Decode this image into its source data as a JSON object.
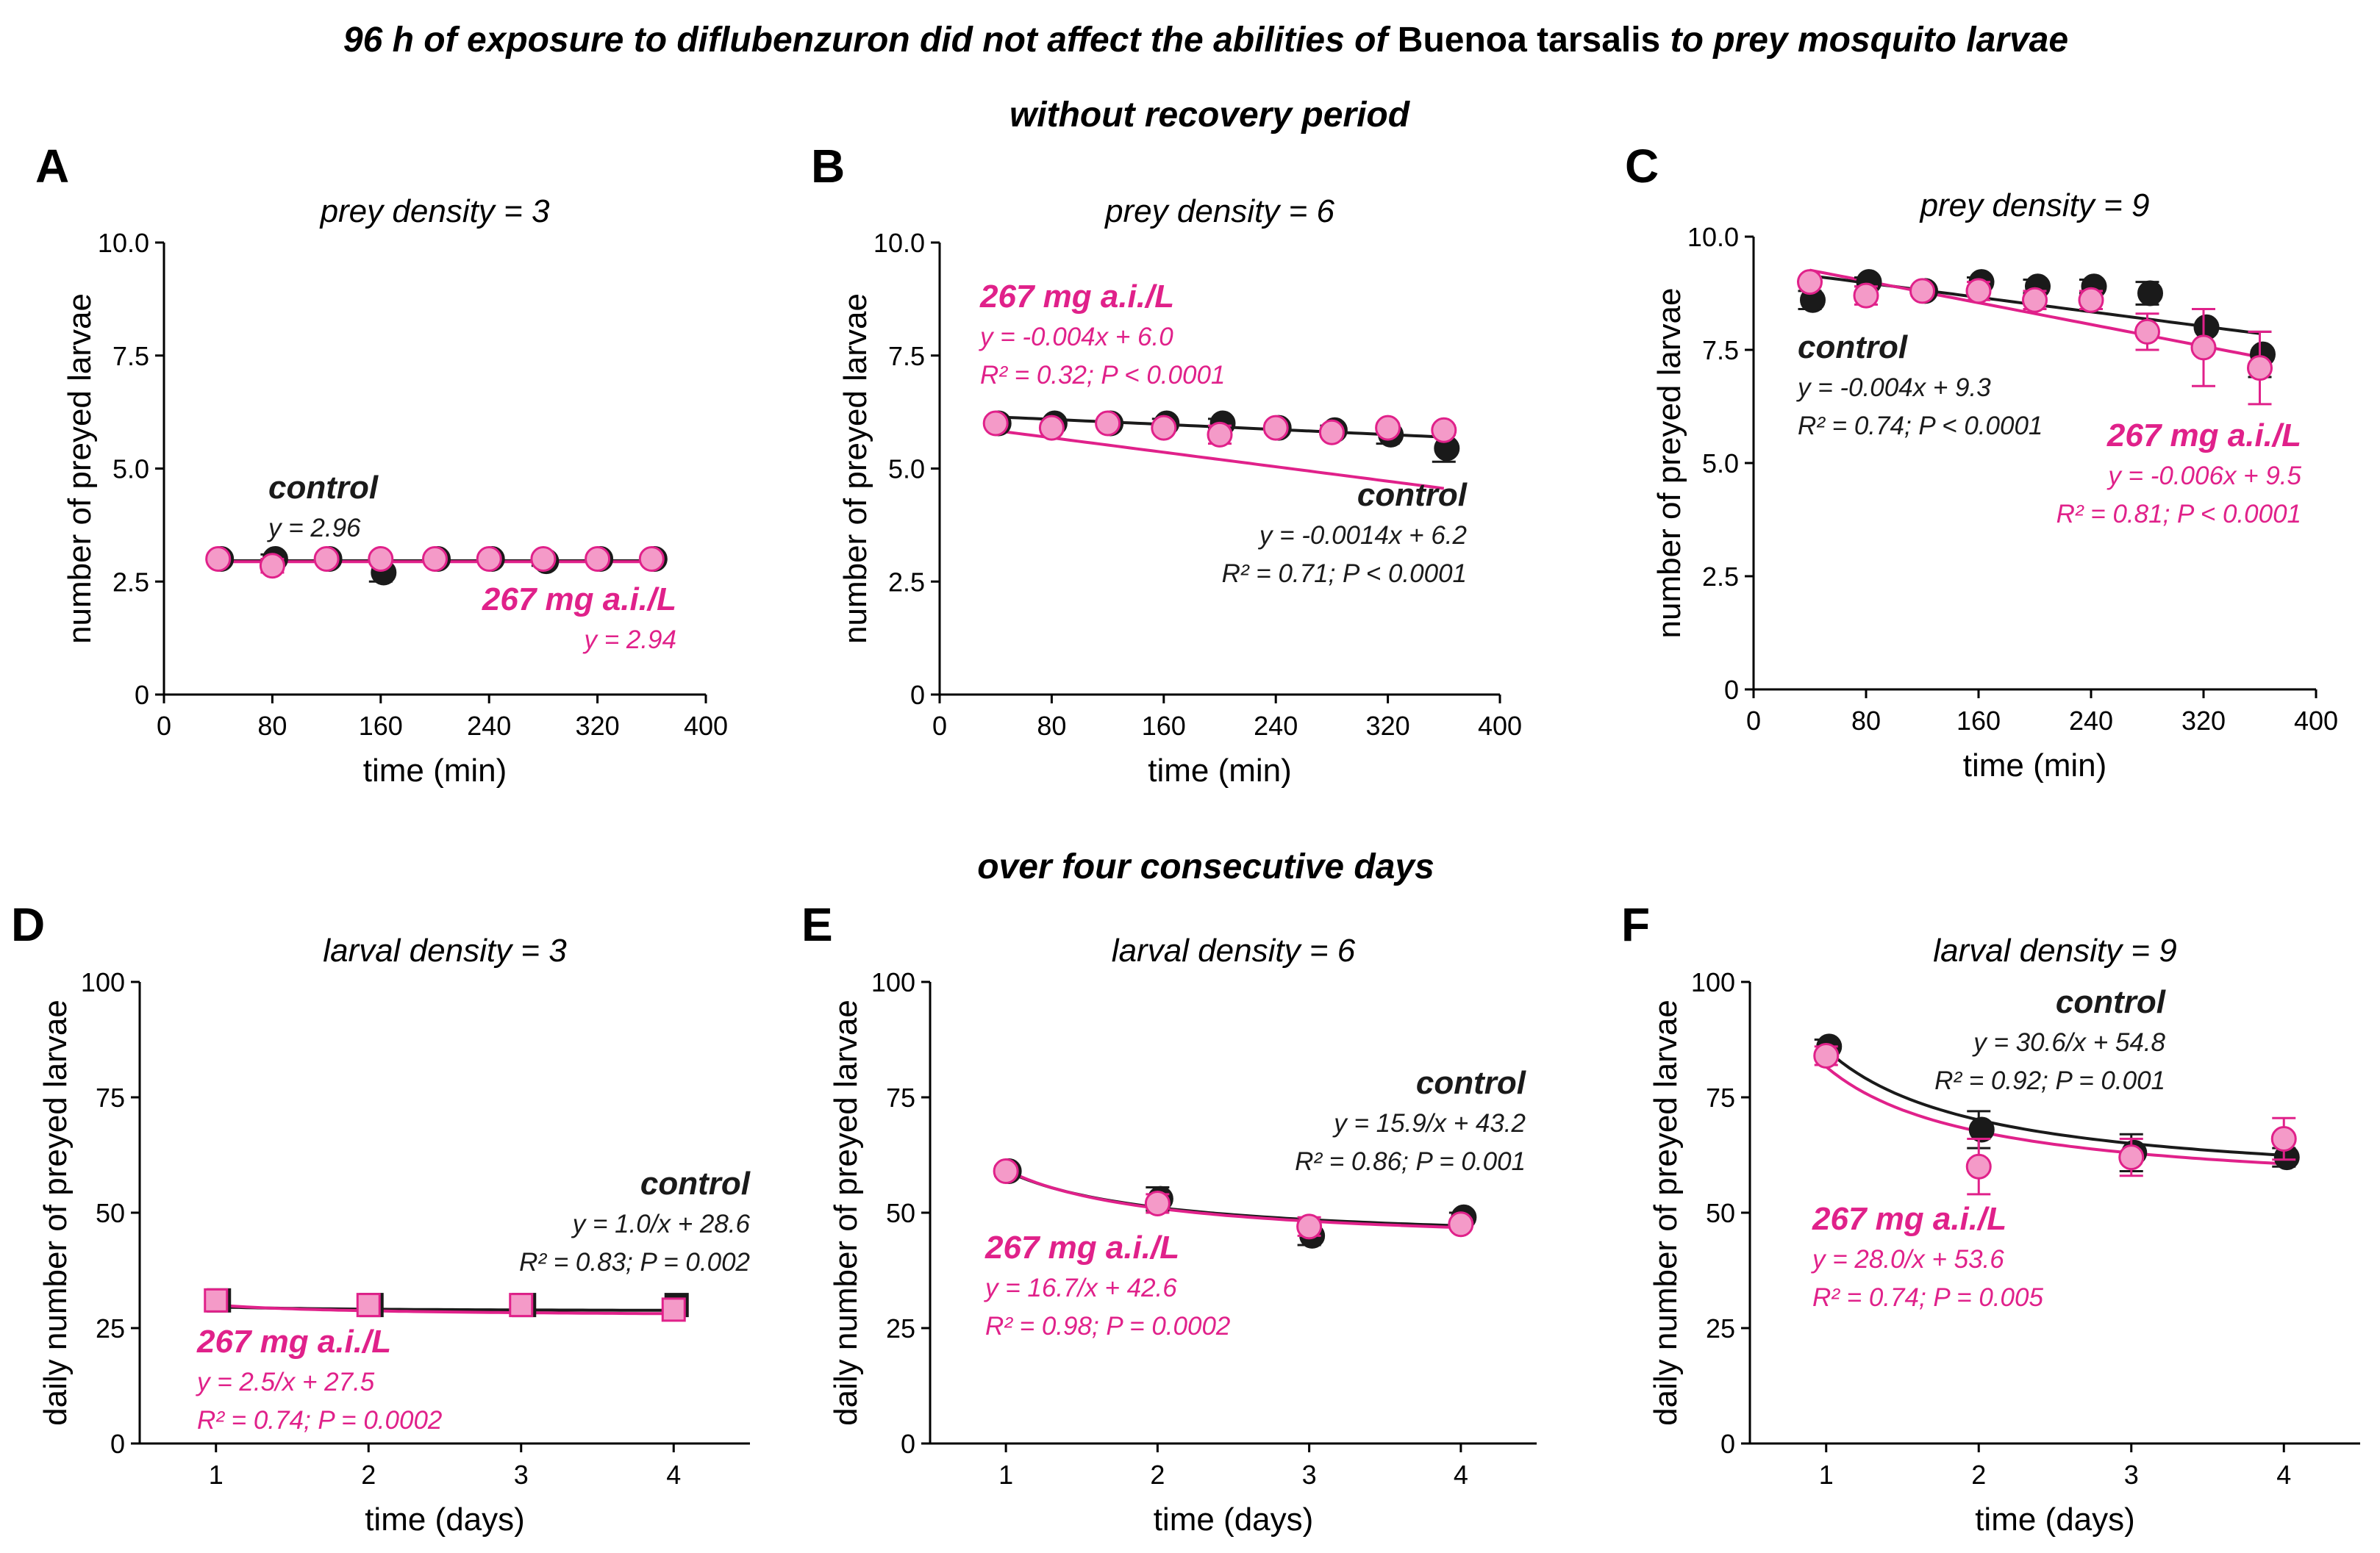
{
  "figure": {
    "title_part1": "96 h of exposure to diflubenzuron did not affect the abilities of ",
    "title_species": "Buenoa tarsalis",
    "title_part2": " to prey mosquito larvae",
    "section_top": "without recovery period",
    "section_bottom": "over four consecutive days"
  },
  "colors": {
    "control": "#1a1a1a",
    "treated_line": "#e0218a",
    "treated_fill": "#f49ac8",
    "axis": "#000000"
  },
  "chart_data": [
    {
      "panel": "A",
      "type": "scatter",
      "title": "prey density = 3",
      "xlabel": "time (min)",
      "ylabel": "number of preyed larvae",
      "xlim": [
        0,
        400
      ],
      "ylim": [
        0,
        10
      ],
      "xticks": [
        0,
        80,
        160,
        240,
        320,
        400
      ],
      "yticks": [
        0,
        2.5,
        5.0,
        7.5,
        10.0
      ],
      "ytick_labels": [
        "0",
        "2.5",
        "5.0",
        "7.5",
        "10.0"
      ],
      "fit_type": "const",
      "marker": "circle",
      "series": [
        {
          "name": "control",
          "x": [
            40,
            80,
            120,
            160,
            200,
            240,
            280,
            320,
            360
          ],
          "y": [
            3.0,
            3.0,
            3.0,
            2.7,
            3.0,
            3.0,
            2.95,
            3.0,
            3.0
          ],
          "err": [
            0,
            0.1,
            0,
            0.2,
            0,
            0,
            0.1,
            0,
            0
          ],
          "fit": {
            "c": 2.96
          }
        },
        {
          "name": "267 mg a.i./L",
          "x": [
            40,
            80,
            120,
            160,
            200,
            240,
            280,
            320,
            360
          ],
          "y": [
            3.0,
            2.85,
            3.0,
            3.0,
            3.0,
            3.0,
            3.0,
            3.0,
            3.0
          ],
          "err": [
            0,
            0.15,
            0,
            0,
            0,
            0,
            0,
            0,
            0
          ],
          "fit": {
            "c": 2.94
          }
        }
      ],
      "annotations": {
        "control": {
          "label": "control",
          "lines": [
            "y = 2.96"
          ]
        },
        "treated": {
          "label": "267 mg a.i./L",
          "lines": [
            "y = 2.94"
          ]
        }
      }
    },
    {
      "panel": "B",
      "type": "scatter",
      "title": "prey density = 6",
      "xlabel": "time (min)",
      "ylabel": "number of preyed larvae",
      "xlim": [
        0,
        400
      ],
      "ylim": [
        0,
        10
      ],
      "xticks": [
        0,
        80,
        160,
        240,
        320,
        400
      ],
      "yticks": [
        0,
        2.5,
        5.0,
        7.5,
        10.0
      ],
      "ytick_labels": [
        "0",
        "2.5",
        "5.0",
        "7.5",
        "10.0"
      ],
      "fit_type": "linear",
      "marker": "circle",
      "series": [
        {
          "name": "control",
          "x": [
            40,
            80,
            120,
            160,
            200,
            240,
            280,
            320,
            360
          ],
          "y": [
            6.0,
            6.0,
            6.0,
            6.0,
            6.0,
            5.9,
            5.85,
            5.75,
            5.45
          ],
          "err": [
            0,
            0.1,
            0,
            0.1,
            0.1,
            0.1,
            0.1,
            0.2,
            0.3
          ],
          "fit": {
            "m": -0.0014,
            "b": 6.2
          }
        },
        {
          "name": "267 mg a.i./L",
          "x": [
            40,
            80,
            120,
            160,
            200,
            240,
            280,
            320,
            360
          ],
          "y": [
            6.0,
            5.9,
            6.0,
            5.9,
            5.75,
            5.9,
            5.8,
            5.9,
            5.85
          ],
          "err": [
            0,
            0.1,
            0,
            0.1,
            0.2,
            0.1,
            0.1,
            0.1,
            0.1
          ],
          "fit": {
            "m": -0.004,
            "b": 6.0
          }
        }
      ],
      "annotations": {
        "control": {
          "label": "control",
          "lines": [
            "y = -0.0014x + 6.2",
            "R² = 0.71; P < 0.0001"
          ]
        },
        "treated": {
          "label": "267 mg a.i./L",
          "lines": [
            "y = -0.004x + 6.0",
            "R² = 0.32; P < 0.0001"
          ]
        }
      }
    },
    {
      "panel": "C",
      "type": "scatter",
      "title": "prey density = 9",
      "xlabel": "time (min)",
      "ylabel": "number of preyed larvae",
      "xlim": [
        0,
        400
      ],
      "ylim": [
        0,
        10
      ],
      "xticks": [
        0,
        80,
        160,
        240,
        320,
        400
      ],
      "yticks": [
        0,
        2.5,
        5.0,
        7.5,
        10.0
      ],
      "ytick_labels": [
        "0",
        "2.5",
        "5.0",
        "7.5",
        "10.0"
      ],
      "fit_type": "linear",
      "marker": "circle",
      "series": [
        {
          "name": "control",
          "x": [
            40,
            80,
            120,
            160,
            200,
            240,
            280,
            320,
            360
          ],
          "y": [
            8.6,
            9.0,
            8.8,
            9.0,
            8.9,
            8.9,
            8.75,
            8.0,
            7.4
          ],
          "err": [
            0.2,
            0.1,
            0.1,
            0.1,
            0.15,
            0.15,
            0.25,
            0.4,
            0.5
          ],
          "fit": {
            "m": -0.004,
            "b": 9.3
          }
        },
        {
          "name": "267 mg a.i./L",
          "x": [
            40,
            80,
            120,
            160,
            200,
            240,
            280,
            320,
            360
          ],
          "y": [
            9.0,
            8.7,
            8.8,
            8.8,
            8.6,
            8.6,
            7.9,
            7.55,
            7.1
          ],
          "err": [
            0,
            0.2,
            0.1,
            0.2,
            0.2,
            0.2,
            0.4,
            0.85,
            0.8
          ],
          "fit": {
            "m": -0.006,
            "b": 9.5
          }
        }
      ],
      "annotations": {
        "control": {
          "label": "control",
          "lines": [
            "y = -0.004x + 9.3",
            "R² = 0.74; P < 0.0001"
          ]
        },
        "treated": {
          "label": "267 mg a.i./L",
          "lines": [
            "y = -0.006x + 9.5",
            "R² = 0.81; P < 0.0001"
          ]
        }
      }
    },
    {
      "panel": "D",
      "type": "scatter",
      "title": "larval density = 3",
      "xlabel": "time (days)",
      "ylabel": "daily number of preyed larvae",
      "xlim": [
        0.5,
        4.5
      ],
      "ylim": [
        0,
        100
      ],
      "xticks": [
        1,
        2,
        3,
        4
      ],
      "yticks": [
        0,
        25,
        50,
        75,
        100
      ],
      "ytick_labels": [
        "0",
        "25",
        "50",
        "75",
        "100"
      ],
      "fit_type": "hyper",
      "marker": "square",
      "series": [
        {
          "name": "control",
          "x": [
            1,
            2,
            3,
            4
          ],
          "y": [
            31,
            30,
            30,
            30
          ],
          "err": [
            1,
            1,
            1,
            1
          ],
          "fit": {
            "a": 1.0,
            "b": 28.6
          }
        },
        {
          "name": "267 mg a.i./L",
          "x": [
            1,
            2,
            3,
            4
          ],
          "y": [
            31,
            30,
            30,
            29
          ],
          "err": [
            1,
            1,
            1,
            1
          ],
          "fit": {
            "a": 2.5,
            "b": 27.5
          }
        }
      ],
      "annotations": {
        "control": {
          "label": "control",
          "lines": [
            "y = 1.0/x + 28.6",
            "R² = 0.83; P = 0.002"
          ]
        },
        "treated": {
          "label": "267 mg a.i./L",
          "lines": [
            "y = 2.5/x + 27.5",
            "R² = 0.74; P = 0.0002"
          ]
        }
      }
    },
    {
      "panel": "E",
      "type": "scatter",
      "title": "larval density = 6",
      "xlabel": "time (days)",
      "ylabel": "daily number of preyed larvae",
      "xlim": [
        0.5,
        4.5
      ],
      "ylim": [
        0,
        100
      ],
      "xticks": [
        1,
        2,
        3,
        4
      ],
      "yticks": [
        0,
        25,
        50,
        75,
        100
      ],
      "ytick_labels": [
        "0",
        "25",
        "50",
        "75",
        "100"
      ],
      "fit_type": "hyper",
      "marker": "circle",
      "series": [
        {
          "name": "control",
          "x": [
            1,
            2,
            3,
            4
          ],
          "y": [
            59,
            53,
            45,
            49
          ],
          "err": [
            1,
            2.5,
            2,
            1
          ],
          "fit": {
            "a": 15.9,
            "b": 43.2
          }
        },
        {
          "name": "267 mg a.i./L",
          "x": [
            1,
            2,
            3,
            4
          ],
          "y": [
            59,
            52,
            47,
            47.5
          ],
          "err": [
            1,
            2,
            2,
            1
          ],
          "fit": {
            "a": 16.7,
            "b": 42.6
          }
        }
      ],
      "annotations": {
        "control": {
          "label": "control",
          "lines": [
            "y = 15.9/x + 43.2",
            "R² = 0.86; P = 0.001"
          ]
        },
        "treated": {
          "label": "267 mg a.i./L",
          "lines": [
            "y = 16.7/x + 42.6",
            "R² = 0.98; P = 0.0002"
          ]
        }
      }
    },
    {
      "panel": "F",
      "type": "scatter",
      "title": "larval density = 9",
      "xlabel": "time (days)",
      "ylabel": "daily number of preyed larvae",
      "xlim": [
        0.5,
        4.5
      ],
      "ylim": [
        0,
        100
      ],
      "xticks": [
        1,
        2,
        3,
        4
      ],
      "yticks": [
        0,
        25,
        50,
        75,
        100
      ],
      "ytick_labels": [
        "0",
        "25",
        "50",
        "75",
        "100"
      ],
      "fit_type": "hyper",
      "marker": "circle",
      "series": [
        {
          "name": "control",
          "x": [
            1,
            2,
            3,
            4
          ],
          "y": [
            86,
            68,
            63,
            62
          ],
          "err": [
            1.5,
            4,
            4,
            2
          ],
          "fit": {
            "a": 30.6,
            "b": 54.8
          }
        },
        {
          "name": "267 mg a.i./L",
          "x": [
            1,
            2,
            3,
            4
          ],
          "y": [
            84,
            60,
            62,
            66
          ],
          "err": [
            2,
            6,
            4,
            4.5
          ],
          "fit": {
            "a": 28.0,
            "b": 53.6
          }
        }
      ],
      "annotations": {
        "control": {
          "label": "control",
          "lines": [
            "y = 30.6/x + 54.8",
            "R² = 0.92; P = 0.001"
          ]
        },
        "treated": {
          "label": "267 mg a.i./L",
          "lines": [
            "y = 28.0/x + 53.6",
            "R² = 0.74; P = 0.005"
          ]
        }
      }
    }
  ]
}
